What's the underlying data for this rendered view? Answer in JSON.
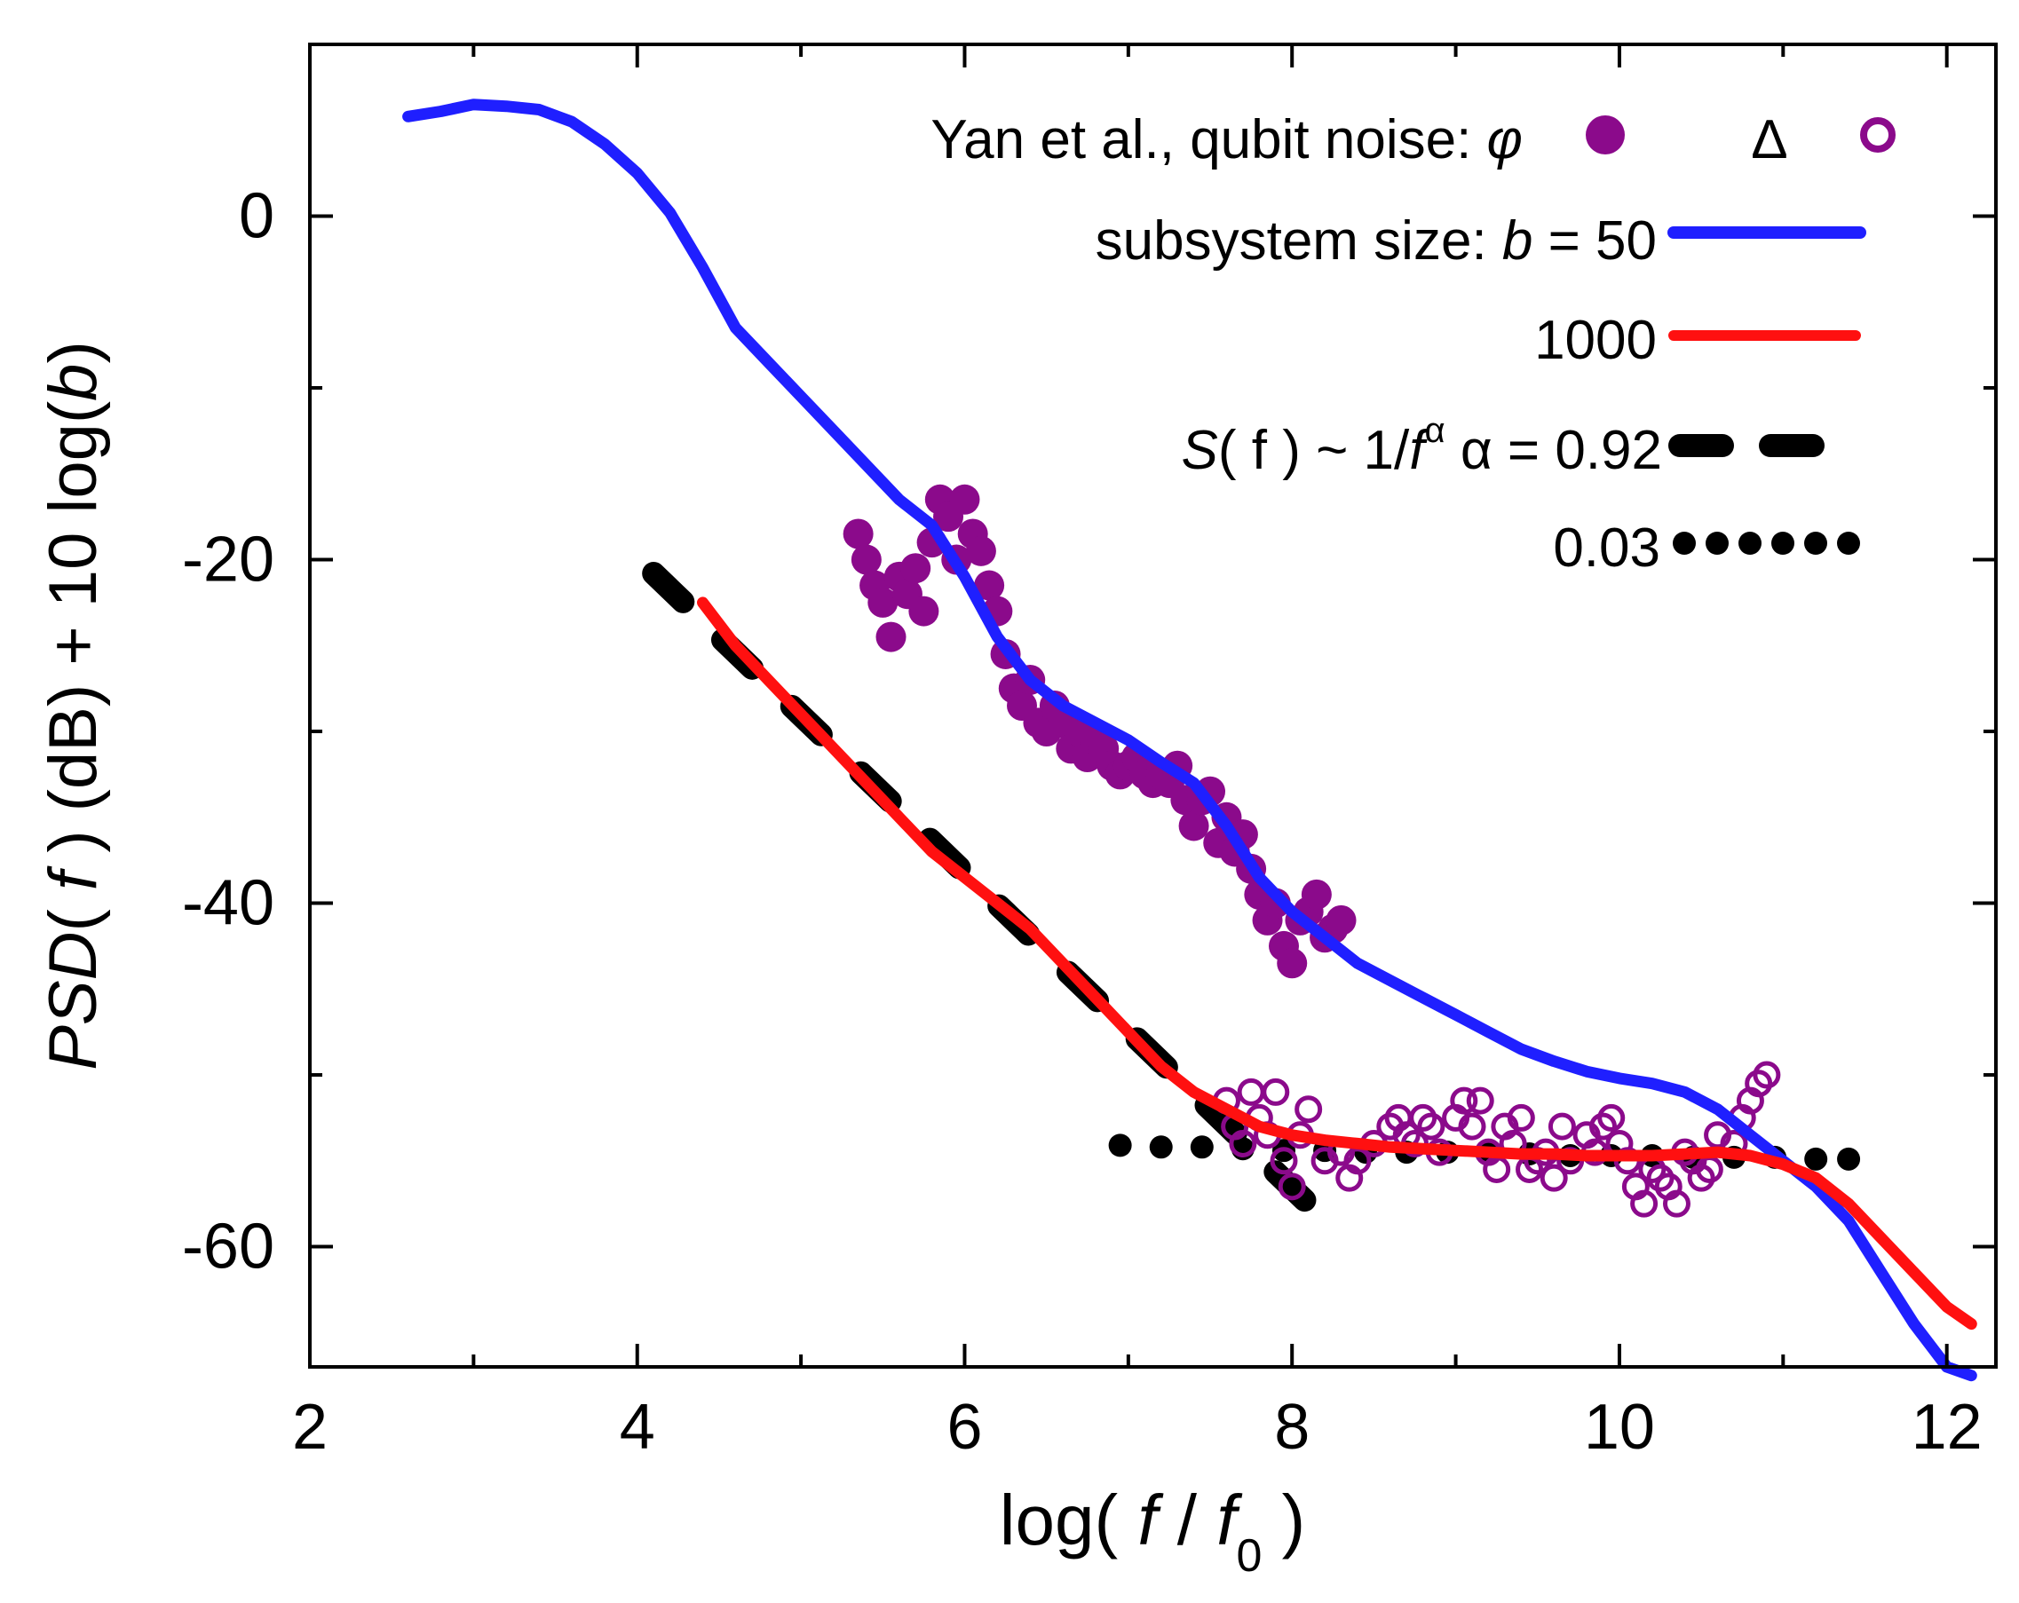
{
  "chart_data": {
    "type": "scatter",
    "title": "",
    "xlabel": "log( f / f0 )",
    "ylabel": "PSD( f ) (dB) + 10 log(b)",
    "xlim": [
      2,
      12.3
    ],
    "ylim": [
      -67,
      10
    ],
    "x_ticks": [
      2,
      4,
      6,
      8,
      10,
      12
    ],
    "y_ticks": [
      0,
      -20,
      -40,
      -60
    ],
    "grid": false,
    "legend_placement": "top-right",
    "legend": {
      "yan_prefix": "Yan et al., qubit noise: ",
      "phi": "φ",
      "delta": "Δ",
      "subsystem_prefix": "subsystem size: ",
      "b_symbol": "b",
      "b50_suffix": " = 50",
      "b1000": "1000",
      "sf_s": "S",
      "sf_mid": "( f ) ~ 1/",
      "sf_f": "f",
      "sf_alpha": "α",
      "alpha_eq": "α = 0.92",
      "alpha_low": "0.03"
    },
    "colors": {
      "b50": "#1f1fff",
      "b1000": "#ff1010",
      "phi": "#8b0a8b",
      "delta": "#8b0a8b",
      "fit": "#000000"
    },
    "series": [
      {
        "name": "b = 50",
        "style": "line",
        "x": [
          2.6,
          2.8,
          3.0,
          3.2,
          3.4,
          3.6,
          3.8,
          4.0,
          4.2,
          4.4,
          4.6,
          4.8,
          5.0,
          5.2,
          5.4,
          5.6,
          5.8,
          6.0,
          6.2,
          6.4,
          6.6,
          6.8,
          7.0,
          7.2,
          7.4,
          7.6,
          7.8,
          8.0,
          8.2,
          8.4,
          8.6,
          8.8,
          9.0,
          9.2,
          9.4,
          9.6,
          9.8,
          10.0,
          10.2,
          10.4,
          10.6,
          10.8,
          11.0,
          11.2,
          11.4,
          11.6,
          11.8,
          12.0,
          12.15
        ],
        "y": [
          5.8,
          6.1,
          6.5,
          6.4,
          6.2,
          5.5,
          4.2,
          2.5,
          0.2,
          -3.0,
          -6.5,
          -8.5,
          -10.5,
          -12.5,
          -14.5,
          -16.5,
          -18.0,
          -21.0,
          -24.5,
          -27.0,
          -28.5,
          -29.5,
          -30.5,
          -31.8,
          -33.0,
          -35.5,
          -38.5,
          -40.5,
          -42.0,
          -43.5,
          -44.5,
          -45.5,
          -46.5,
          -47.5,
          -48.5,
          -49.2,
          -49.8,
          -50.2,
          -50.5,
          -51.0,
          -52.0,
          -53.5,
          -55.0,
          -56.5,
          -58.5,
          -61.5,
          -64.5,
          -67.0,
          -67.5
        ]
      },
      {
        "name": "1000",
        "style": "line",
        "x": [
          4.4,
          4.6,
          4.8,
          5.0,
          5.2,
          5.4,
          5.6,
          5.8,
          6.0,
          6.2,
          6.4,
          6.6,
          6.8,
          7.0,
          7.2,
          7.4,
          7.6,
          7.8,
          8.0,
          8.2,
          8.4,
          8.6,
          8.8,
          9.0,
          9.2,
          9.4,
          9.6,
          9.8,
          10.0,
          10.2,
          10.4,
          10.6,
          10.8,
          11.0,
          11.2,
          11.4,
          11.6,
          11.8,
          12.0,
          12.15
        ],
        "y": [
          -22.5,
          -25.0,
          -27.0,
          -29.0,
          -31.0,
          -33.0,
          -35.0,
          -37.0,
          -38.5,
          -40.0,
          -41.5,
          -43.5,
          -45.5,
          -47.5,
          -49.5,
          -51.0,
          -52.0,
          -53.0,
          -53.5,
          -53.8,
          -54.0,
          -54.2,
          -54.3,
          -54.4,
          -54.5,
          -54.6,
          -54.6,
          -54.7,
          -54.7,
          -54.7,
          -54.6,
          -54.5,
          -54.7,
          -55.2,
          -56.0,
          -57.5,
          -59.5,
          -61.5,
          -63.5,
          -64.5
        ]
      },
      {
        "name": "α = 0.92",
        "style": "dash",
        "x": [
          4.1,
          8.1
        ],
        "y": [
          -20.8,
          -57.5
        ]
      },
      {
        "name": "0.03",
        "style": "dot",
        "x": [
          6.95,
          7.2,
          7.45,
          7.7,
          7.95,
          8.2,
          8.45,
          8.7,
          8.95,
          9.2,
          9.45,
          9.7,
          9.95,
          10.2,
          10.45,
          10.7,
          10.95,
          11.2,
          11.4
        ],
        "y": [
          -54.1,
          -54.2,
          -54.2,
          -54.3,
          -54.4,
          -54.4,
          -54.5,
          -54.5,
          -54.5,
          -54.6,
          -54.6,
          -54.7,
          -54.7,
          -54.7,
          -54.8,
          -54.8,
          -54.8,
          -54.9,
          -54.9
        ]
      },
      {
        "name": "φ",
        "style": "filled-circle",
        "x": [
          5.35,
          5.4,
          5.45,
          5.5,
          5.55,
          5.6,
          5.65,
          5.7,
          5.75,
          5.8,
          5.85,
          5.9,
          5.95,
          6.0,
          6.05,
          6.1,
          6.15,
          6.2,
          6.25,
          6.3,
          6.35,
          6.4,
          6.45,
          6.5,
          6.55,
          6.6,
          6.65,
          6.7,
          6.75,
          6.8,
          6.85,
          6.9,
          6.95,
          7.0,
          7.05,
          7.1,
          7.15,
          7.2,
          7.25,
          7.3,
          7.35,
          7.4,
          7.45,
          7.5,
          7.55,
          7.6,
          7.65,
          7.7,
          7.75,
          7.8,
          7.85,
          7.9,
          7.95,
          8.0,
          8.05,
          8.1,
          8.15,
          8.2,
          8.25,
          8.3
        ],
        "y": [
          -18.5,
          -20.0,
          -21.5,
          -22.5,
          -24.5,
          -21.0,
          -22.0,
          -20.5,
          -23.0,
          -19.0,
          -16.5,
          -17.5,
          -20.0,
          -16.5,
          -18.5,
          -19.5,
          -21.5,
          -23.0,
          -25.5,
          -27.5,
          -28.5,
          -27.0,
          -29.5,
          -30.0,
          -28.5,
          -29.5,
          -31.0,
          -30.0,
          -31.5,
          -30.5,
          -31.0,
          -32.0,
          -32.5,
          -32.0,
          -31.5,
          -32.5,
          -33.0,
          -32.5,
          -33.0,
          -32.0,
          -34.0,
          -35.5,
          -34.0,
          -33.5,
          -36.5,
          -35.0,
          -37.0,
          -36.0,
          -38.0,
          -39.5,
          -41.0,
          -40.0,
          -42.5,
          -43.5,
          -41.0,
          -40.5,
          -39.5,
          -42.0,
          -41.5,
          -41.0
        ]
      },
      {
        "name": "Δ",
        "style": "open-circle",
        "x": [
          7.6,
          7.65,
          7.7,
          7.75,
          7.8,
          7.85,
          7.9,
          7.95,
          8.0,
          8.05,
          8.1,
          8.2,
          8.3,
          8.35,
          8.4,
          8.5,
          8.6,
          8.65,
          8.7,
          8.75,
          8.8,
          8.85,
          8.9,
          9.0,
          9.05,
          9.1,
          9.15,
          9.2,
          9.25,
          9.3,
          9.35,
          9.4,
          9.45,
          9.5,
          9.55,
          9.6,
          9.65,
          9.7,
          9.8,
          9.85,
          9.9,
          9.95,
          10.0,
          10.05,
          10.1,
          10.15,
          10.2,
          10.25,
          10.3,
          10.35,
          10.4,
          10.45,
          10.5,
          10.55,
          10.6,
          10.7,
          10.75,
          10.8,
          10.85,
          10.9
        ],
        "y": [
          -51.5,
          -53.0,
          -54.0,
          -51.0,
          -52.5,
          -53.5,
          -51.0,
          -55.0,
          -56.5,
          -53.5,
          -52.0,
          -55.0,
          -54.5,
          -56.0,
          -55.0,
          -54.0,
          -53.0,
          -52.5,
          -53.5,
          -54.0,
          -52.5,
          -53.0,
          -54.5,
          -52.5,
          -51.5,
          -53.0,
          -51.5,
          -54.5,
          -55.5,
          -53.0,
          -54.0,
          -52.5,
          -55.5,
          -55.0,
          -54.5,
          -56.0,
          -53.0,
          -55.0,
          -53.5,
          -54.5,
          -53.0,
          -52.5,
          -54.0,
          -55.0,
          -56.5,
          -57.5,
          -55.5,
          -56.0,
          -56.5,
          -57.5,
          -54.5,
          -55.0,
          -56.0,
          -55.5,
          -53.5,
          -54.0,
          -52.5,
          -51.5,
          -50.5,
          -50.0
        ]
      }
    ]
  }
}
